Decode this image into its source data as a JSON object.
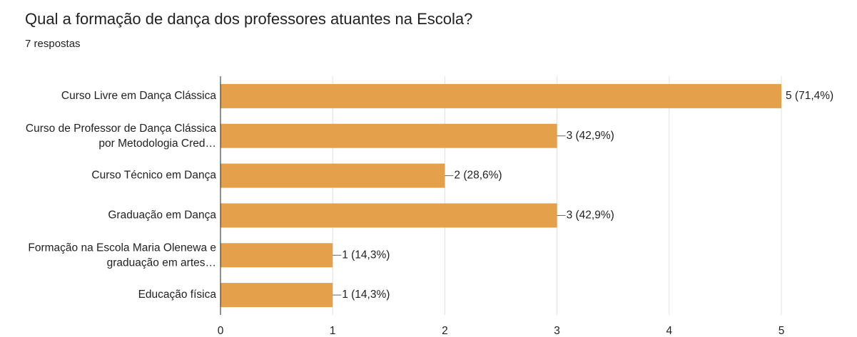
{
  "chart_data": {
    "type": "bar",
    "orientation": "horizontal",
    "title": "Qual a formação de dança dos professores atuantes na Escola?",
    "subtitle": "7 respostas",
    "categories": [
      "Curso Livre em Dança Clássica",
      "Curso de Professor de Dança Clássica por Metodologia Cred…",
      "Curso Técnico em Dança",
      "Graduação em Dança",
      "Formação na Escola Maria Olenewa e graduação em artes…",
      "Educação física"
    ],
    "values": [
      5,
      3,
      2,
      3,
      1,
      1
    ],
    "value_labels": [
      "5 (71,4%)",
      "3 (42,9%)",
      "2 (28,6%)",
      "3 (42,9%)",
      "1 (14,3%)",
      "1 (14,3%)"
    ],
    "color": "#e4a04a",
    "xlim": [
      0,
      5
    ],
    "xticks": [
      0,
      1,
      2,
      3,
      4,
      5
    ],
    "grid": true
  }
}
